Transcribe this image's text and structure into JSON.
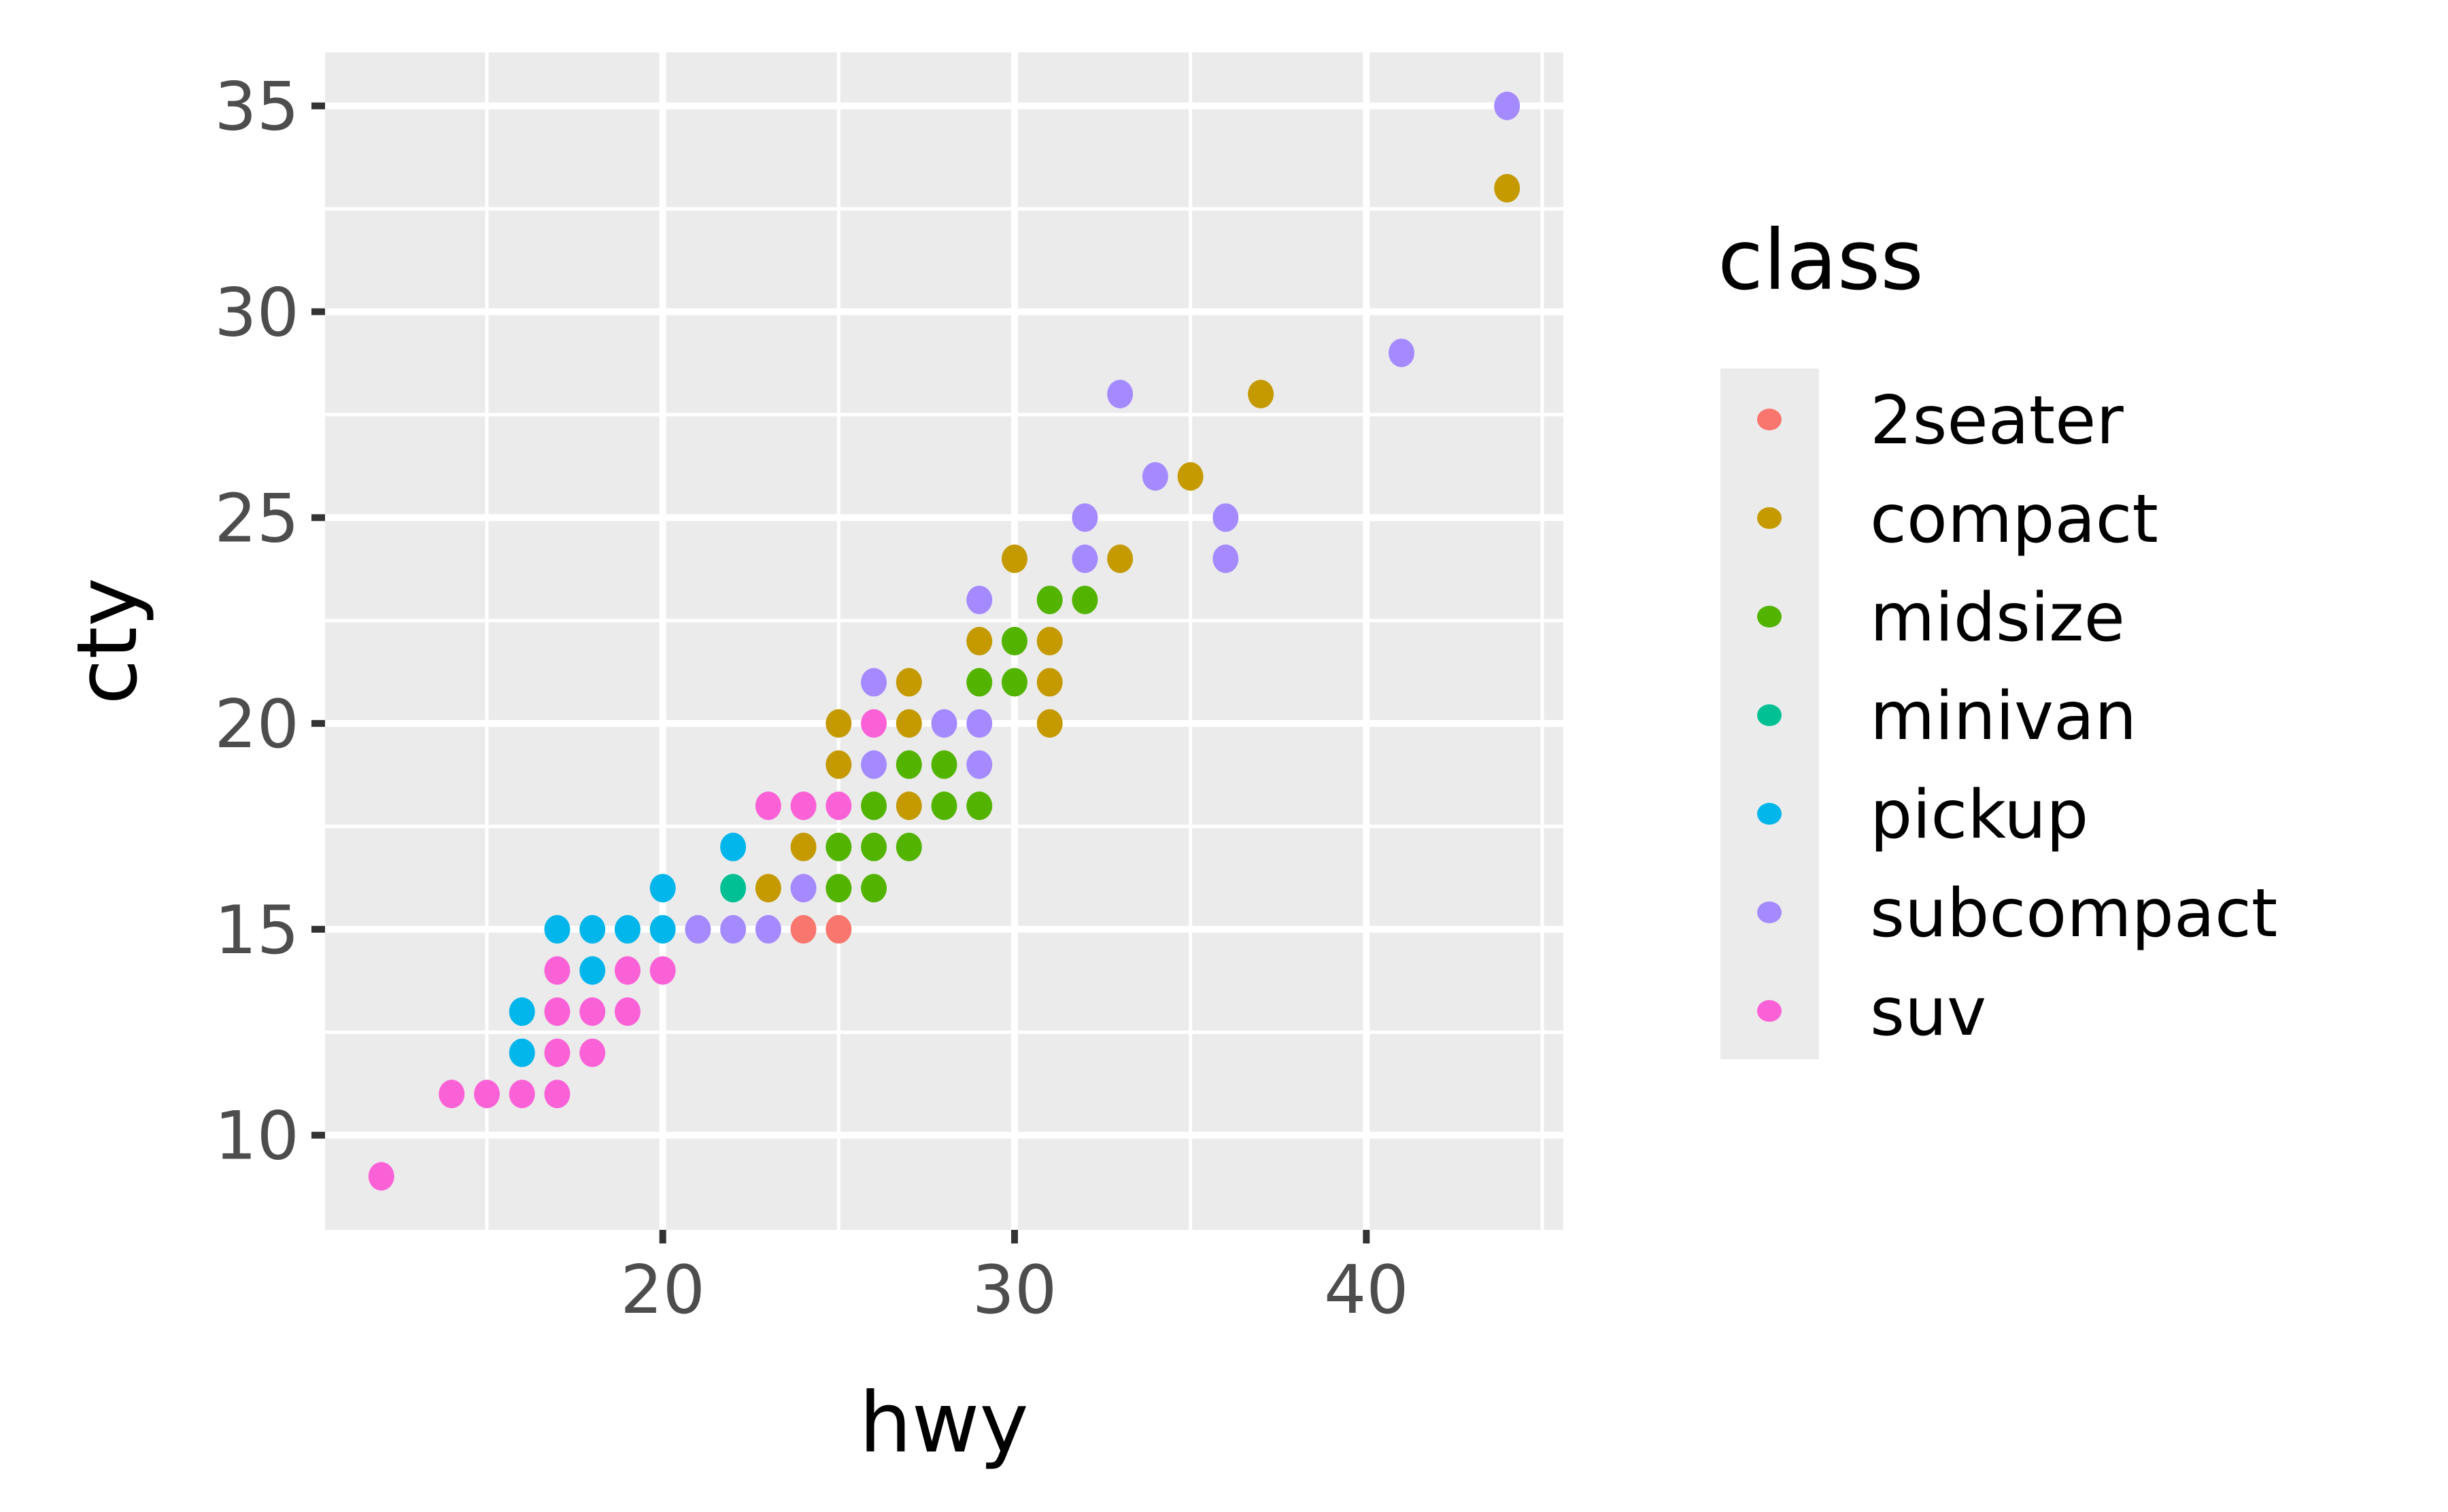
{
  "chart_data": {
    "type": "scatter",
    "title": "",
    "xlabel": "hwy",
    "ylabel": "cty",
    "xlim": [
      10.4,
      45.6
    ],
    "ylim": [
      7.7,
      36.3
    ],
    "x_ticks": [
      20,
      30,
      40
    ],
    "y_ticks": [
      10,
      15,
      20,
      25,
      30,
      35
    ],
    "grid": true,
    "legend_position": "right",
    "legend": {
      "title": "class",
      "entries": [
        {
          "name": "2seater",
          "color": "#F8766D"
        },
        {
          "name": "compact",
          "color": "#C49A00"
        },
        {
          "name": "midsize",
          "color": "#53B400"
        },
        {
          "name": "minivan",
          "color": "#00C094"
        },
        {
          "name": "pickup",
          "color": "#00B6EB"
        },
        {
          "name": "subcompact",
          "color": "#A58AFF"
        },
        {
          "name": "suv",
          "color": "#FB61D7"
        }
      ]
    },
    "series": [
      {
        "name": "2seater",
        "color": "#F8766D",
        "points": [
          [
            24,
            15
          ],
          [
            25,
            15
          ]
        ]
      },
      {
        "name": "compact",
        "color": "#C49A00",
        "points": [
          [
            44,
            33
          ],
          [
            37,
            28
          ],
          [
            35,
            26
          ],
          [
            30,
            24
          ],
          [
            33,
            24
          ],
          [
            29,
            22
          ],
          [
            31,
            22
          ],
          [
            27,
            21
          ],
          [
            31,
            21
          ],
          [
            25,
            20
          ],
          [
            27,
            20
          ],
          [
            31,
            20
          ],
          [
            25,
            19
          ],
          [
            27,
            18
          ],
          [
            24,
            17
          ],
          [
            23,
            16
          ]
        ]
      },
      {
        "name": "midsize",
        "color": "#53B400",
        "points": [
          [
            31,
            23
          ],
          [
            32,
            23
          ],
          [
            30,
            22
          ],
          [
            29,
            21
          ],
          [
            30,
            21
          ],
          [
            27,
            19
          ],
          [
            28,
            19
          ],
          [
            26,
            18
          ],
          [
            28,
            18
          ],
          [
            29,
            18
          ],
          [
            25,
            17
          ],
          [
            26,
            17
          ],
          [
            27,
            17
          ],
          [
            25,
            16
          ],
          [
            26,
            16
          ]
        ]
      },
      {
        "name": "minivan",
        "color": "#00C094",
        "points": [
          [
            22,
            16
          ]
        ]
      },
      {
        "name": "pickup",
        "color": "#00B6EB",
        "points": [
          [
            22,
            17
          ],
          [
            20,
            16
          ],
          [
            17,
            15
          ],
          [
            18,
            15
          ],
          [
            19,
            15
          ],
          [
            20,
            15
          ],
          [
            18,
            14
          ],
          [
            16,
            13
          ],
          [
            16,
            12
          ]
        ]
      },
      {
        "name": "subcompact",
        "color": "#A58AFF",
        "points": [
          [
            44,
            35
          ],
          [
            41,
            29
          ],
          [
            33,
            28
          ],
          [
            34,
            26
          ],
          [
            32,
            25
          ],
          [
            36,
            25
          ],
          [
            32,
            24
          ],
          [
            36,
            24
          ],
          [
            29,
            23
          ],
          [
            26,
            21
          ],
          [
            28,
            20
          ],
          [
            29,
            20
          ],
          [
            26,
            19
          ],
          [
            29,
            19
          ],
          [
            24,
            16
          ],
          [
            21,
            15
          ],
          [
            22,
            15
          ],
          [
            23,
            15
          ]
        ]
      },
      {
        "name": "suv",
        "color": "#FB61D7",
        "points": [
          [
            26,
            20
          ],
          [
            23,
            18
          ],
          [
            24,
            18
          ],
          [
            25,
            18
          ],
          [
            17,
            14
          ],
          [
            19,
            14
          ],
          [
            20,
            14
          ],
          [
            17,
            13
          ],
          [
            18,
            13
          ],
          [
            19,
            13
          ],
          [
            17,
            12
          ],
          [
            18,
            12
          ],
          [
            14,
            11
          ],
          [
            15,
            11
          ],
          [
            16,
            11
          ],
          [
            17,
            11
          ],
          [
            12,
            9
          ]
        ]
      }
    ]
  },
  "colors": {
    "panel_background": "#EBEBEB",
    "grid_major": "#FFFFFF",
    "grid_minor": "#FFFFFF",
    "tick_color": "#333333",
    "tick_label_color": "#4D4D4D"
  }
}
